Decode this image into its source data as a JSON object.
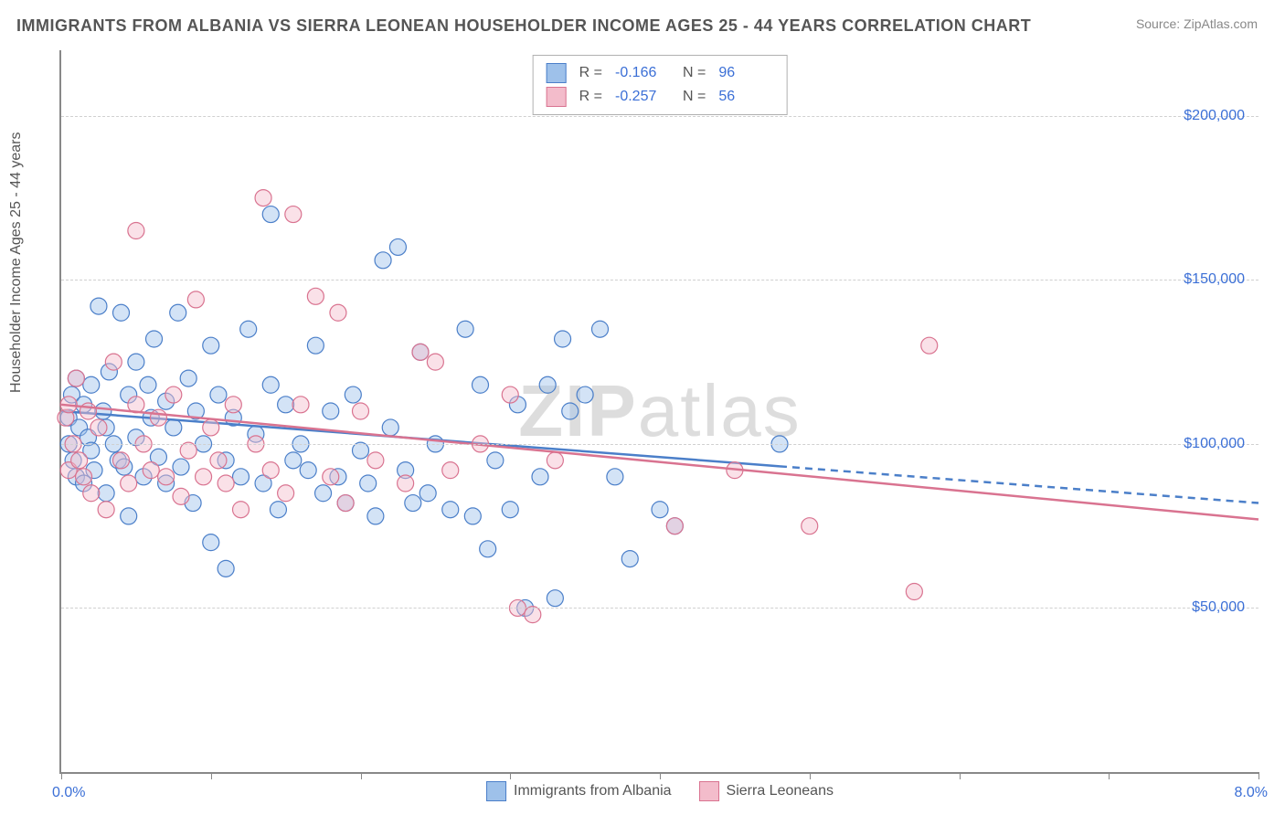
{
  "title": "IMMIGRANTS FROM ALBANIA VS SIERRA LEONEAN HOUSEHOLDER INCOME AGES 25 - 44 YEARS CORRELATION CHART",
  "source": "Source: ZipAtlas.com",
  "ylabel": "Householder Income Ages 25 - 44 years",
  "watermark_bold": "ZIP",
  "watermark_rest": "atlas",
  "chart": {
    "type": "scatter",
    "background_color": "#ffffff",
    "grid_color": "#d0d0d0",
    "axis_color": "#888888",
    "xlim": [
      0,
      8
    ],
    "ylim": [
      0,
      220000
    ],
    "x_tick_positions": [
      0,
      1,
      2,
      3,
      4,
      5,
      6,
      7,
      8
    ],
    "x_min_label": "0.0%",
    "x_max_label": "8.0%",
    "y_gridlines": [
      50000,
      100000,
      150000,
      200000
    ],
    "y_tick_labels": [
      "$50,000",
      "$100,000",
      "$150,000",
      "$200,000"
    ],
    "marker_radius": 9,
    "marker_opacity": 0.45,
    "series": [
      {
        "name": "Immigrants from Albania",
        "fill": "#9ec1ea",
        "stroke": "#4b7fc9",
        "R": "-0.166",
        "N": "96",
        "trend": {
          "y_at_xmin": 110000,
          "y_at_xmax": 82000,
          "solid_until_x": 4.8
        },
        "points": [
          [
            0.05,
            108000
          ],
          [
            0.05,
            100000
          ],
          [
            0.07,
            115000
          ],
          [
            0.08,
            95000
          ],
          [
            0.1,
            120000
          ],
          [
            0.1,
            90000
          ],
          [
            0.12,
            105000
          ],
          [
            0.15,
            112000
          ],
          [
            0.15,
            88000
          ],
          [
            0.18,
            102000
          ],
          [
            0.2,
            118000
          ],
          [
            0.2,
            98000
          ],
          [
            0.22,
            92000
          ],
          [
            0.25,
            142000
          ],
          [
            0.28,
            110000
          ],
          [
            0.3,
            105000
          ],
          [
            0.3,
            85000
          ],
          [
            0.32,
            122000
          ],
          [
            0.35,
            100000
          ],
          [
            0.38,
            95000
          ],
          [
            0.4,
            140000
          ],
          [
            0.42,
            93000
          ],
          [
            0.45,
            115000
          ],
          [
            0.45,
            78000
          ],
          [
            0.5,
            125000
          ],
          [
            0.5,
            102000
          ],
          [
            0.55,
            90000
          ],
          [
            0.58,
            118000
          ],
          [
            0.6,
            108000
          ],
          [
            0.62,
            132000
          ],
          [
            0.65,
            96000
          ],
          [
            0.7,
            113000
          ],
          [
            0.7,
            88000
          ],
          [
            0.75,
            105000
          ],
          [
            0.78,
            140000
          ],
          [
            0.8,
            93000
          ],
          [
            0.85,
            120000
          ],
          [
            0.88,
            82000
          ],
          [
            0.9,
            110000
          ],
          [
            0.95,
            100000
          ],
          [
            1.0,
            130000
          ],
          [
            1.0,
            70000
          ],
          [
            1.05,
            115000
          ],
          [
            1.1,
            95000
          ],
          [
            1.1,
            62000
          ],
          [
            1.15,
            108000
          ],
          [
            1.2,
            90000
          ],
          [
            1.25,
            135000
          ],
          [
            1.3,
            103000
          ],
          [
            1.35,
            88000
          ],
          [
            1.4,
            170000
          ],
          [
            1.4,
            118000
          ],
          [
            1.45,
            80000
          ],
          [
            1.5,
            112000
          ],
          [
            1.55,
            95000
          ],
          [
            1.6,
            100000
          ],
          [
            1.65,
            92000
          ],
          [
            1.7,
            130000
          ],
          [
            1.75,
            85000
          ],
          [
            1.8,
            110000
          ],
          [
            1.85,
            90000
          ],
          [
            1.9,
            82000
          ],
          [
            1.95,
            115000
          ],
          [
            2.0,
            98000
          ],
          [
            2.05,
            88000
          ],
          [
            2.1,
            78000
          ],
          [
            2.15,
            156000
          ],
          [
            2.2,
            105000
          ],
          [
            2.25,
            160000
          ],
          [
            2.3,
            92000
          ],
          [
            2.35,
            82000
          ],
          [
            2.4,
            128000
          ],
          [
            2.45,
            85000
          ],
          [
            2.5,
            100000
          ],
          [
            2.6,
            80000
          ],
          [
            2.7,
            135000
          ],
          [
            2.75,
            78000
          ],
          [
            2.8,
            118000
          ],
          [
            2.85,
            68000
          ],
          [
            2.9,
            95000
          ],
          [
            3.0,
            80000
          ],
          [
            3.05,
            112000
          ],
          [
            3.1,
            50000
          ],
          [
            3.2,
            90000
          ],
          [
            3.25,
            118000
          ],
          [
            3.3,
            53000
          ],
          [
            3.35,
            132000
          ],
          [
            3.4,
            110000
          ],
          [
            3.5,
            115000
          ],
          [
            3.6,
            135000
          ],
          [
            3.7,
            90000
          ],
          [
            3.8,
            65000
          ],
          [
            4.0,
            80000
          ],
          [
            4.1,
            75000
          ],
          [
            4.8,
            100000
          ]
        ]
      },
      {
        "name": "Sierra Leoneans",
        "fill": "#f3bccb",
        "stroke": "#d97390",
        "R": "-0.257",
        "N": "56",
        "trend": {
          "y_at_xmin": 112000,
          "y_at_xmax": 77000,
          "solid_until_x": 8.0
        },
        "points": [
          [
            0.03,
            108000
          ],
          [
            0.05,
            112000
          ],
          [
            0.05,
            92000
          ],
          [
            0.08,
            100000
          ],
          [
            0.1,
            120000
          ],
          [
            0.12,
            95000
          ],
          [
            0.15,
            90000
          ],
          [
            0.18,
            110000
          ],
          [
            0.2,
            85000
          ],
          [
            0.25,
            105000
          ],
          [
            0.3,
            80000
          ],
          [
            0.35,
            125000
          ],
          [
            0.4,
            95000
          ],
          [
            0.45,
            88000
          ],
          [
            0.5,
            112000
          ],
          [
            0.5,
            165000
          ],
          [
            0.55,
            100000
          ],
          [
            0.6,
            92000
          ],
          [
            0.65,
            108000
          ],
          [
            0.7,
            90000
          ],
          [
            0.75,
            115000
          ],
          [
            0.8,
            84000
          ],
          [
            0.85,
            98000
          ],
          [
            0.9,
            144000
          ],
          [
            0.95,
            90000
          ],
          [
            1.0,
            105000
          ],
          [
            1.05,
            95000
          ],
          [
            1.1,
            88000
          ],
          [
            1.15,
            112000
          ],
          [
            1.2,
            80000
          ],
          [
            1.3,
            100000
          ],
          [
            1.35,
            175000
          ],
          [
            1.4,
            92000
          ],
          [
            1.5,
            85000
          ],
          [
            1.55,
            170000
          ],
          [
            1.6,
            112000
          ],
          [
            1.7,
            145000
          ],
          [
            1.8,
            90000
          ],
          [
            1.85,
            140000
          ],
          [
            1.9,
            82000
          ],
          [
            2.0,
            110000
          ],
          [
            2.1,
            95000
          ],
          [
            2.3,
            88000
          ],
          [
            2.4,
            128000
          ],
          [
            2.5,
            125000
          ],
          [
            2.6,
            92000
          ],
          [
            2.8,
            100000
          ],
          [
            3.0,
            115000
          ],
          [
            3.05,
            50000
          ],
          [
            3.15,
            48000
          ],
          [
            3.3,
            95000
          ],
          [
            4.1,
            75000
          ],
          [
            4.5,
            92000
          ],
          [
            5.0,
            75000
          ],
          [
            5.7,
            55000
          ],
          [
            5.8,
            130000
          ]
        ]
      }
    ]
  },
  "legend_bottom": [
    {
      "label": "Immigrants from Albania",
      "fill": "#9ec1ea",
      "stroke": "#4b7fc9"
    },
    {
      "label": "Sierra Leoneans",
      "fill": "#f3bccb",
      "stroke": "#d97390"
    }
  ]
}
